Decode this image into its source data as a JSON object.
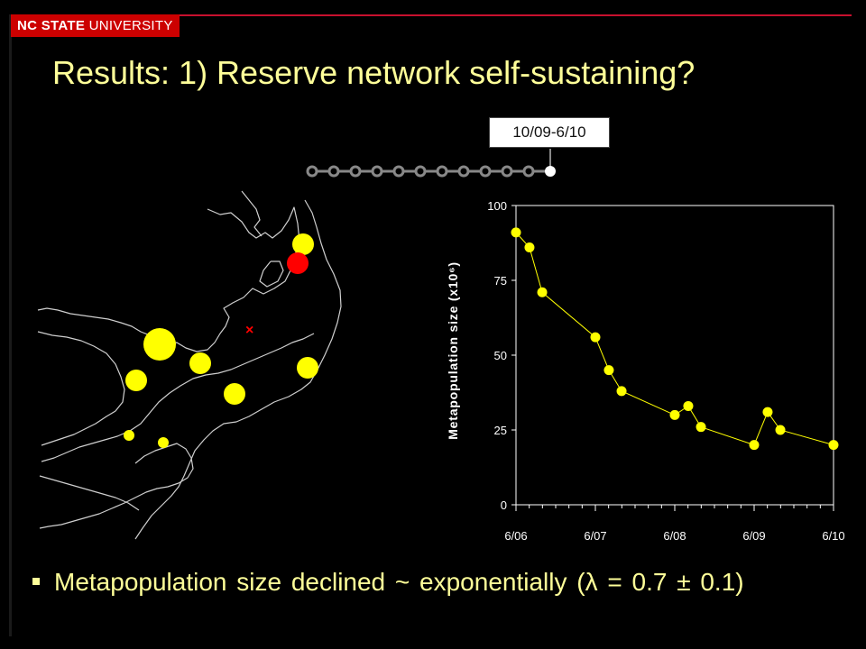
{
  "brand": {
    "bold": "NC STATE",
    "rest": " UNIVERSITY"
  },
  "slide": {
    "title": "Results: 1) Reserve network self-sustaining?",
    "callout": "10/09-6/10",
    "bullet": "Metapopulation size declined ~ exponentially (λ = 0.7 ± 0.1)"
  },
  "map": {
    "sites": [
      {
        "color": "#ffff00",
        "size": "medium"
      },
      {
        "color": "#ff0000",
        "size": "medium"
      },
      {
        "color": "#ffff00",
        "size": "large"
      },
      {
        "color": "#ffff00",
        "size": "medium"
      },
      {
        "color": "#ffff00",
        "size": "medium"
      },
      {
        "color": "#ffff00",
        "size": "medium"
      },
      {
        "color": "#ffff00",
        "size": "medium"
      },
      {
        "color": "#ffff00",
        "size": "small"
      },
      {
        "color": "#ffff00",
        "size": "small"
      }
    ],
    "marker_color": "#ff0000"
  },
  "chart_data": {
    "type": "line",
    "ylabel": "Metapopulation size (x10⁶)",
    "xlabel": "",
    "ylim": [
      0,
      100
    ],
    "yticks": [
      "0",
      "25",
      "50",
      "75",
      "100"
    ],
    "xticks": [
      "6/06",
      "6/07",
      "6/08",
      "6/09",
      "6/10"
    ],
    "series": [
      {
        "color": "#ffff00",
        "x": [
          0.0,
          0.17,
          0.33,
          1.0,
          1.17,
          1.33,
          2.0,
          2.17,
          2.33,
          3.0,
          3.17,
          3.33,
          4.0
        ],
        "y": [
          91,
          86,
          71,
          56,
          45,
          38,
          30,
          33,
          26,
          20,
          31,
          25,
          20
        ]
      }
    ],
    "grid": false
  }
}
